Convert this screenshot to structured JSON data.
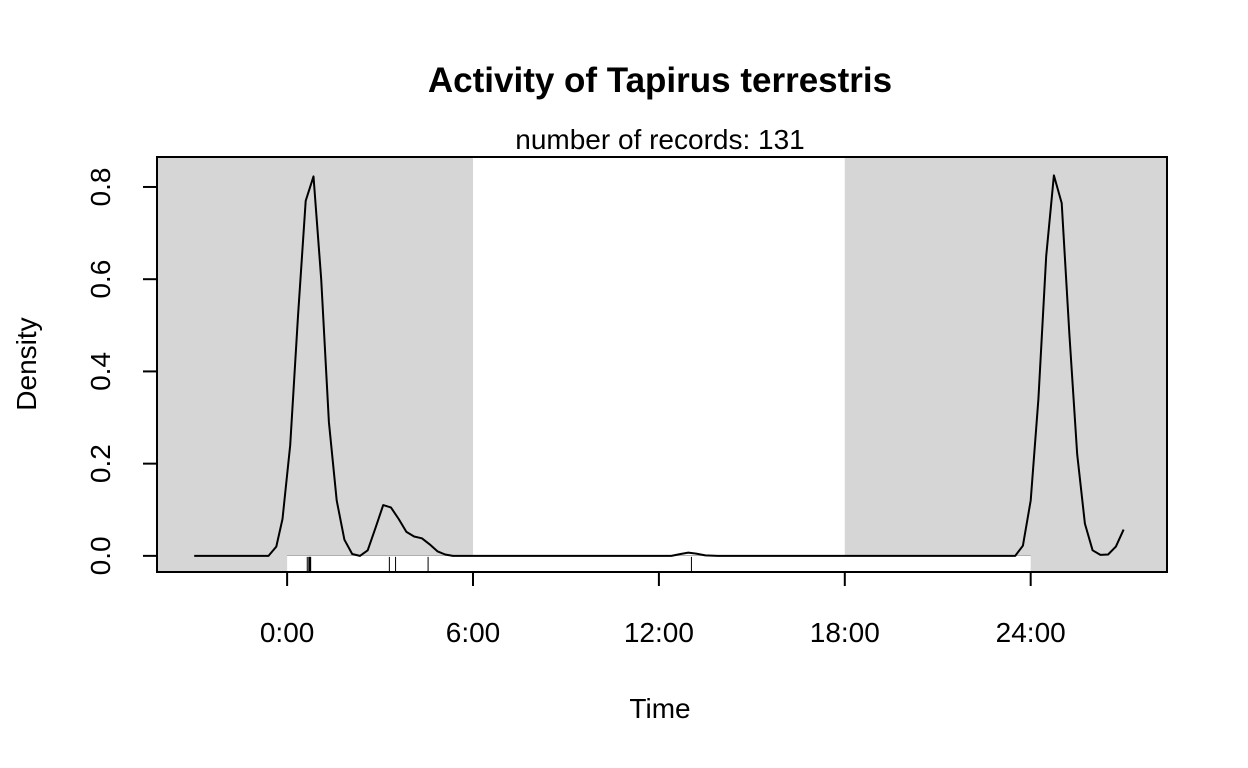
{
  "chart_data": {
    "type": "line",
    "title": "Activity of Tapirus terrestris",
    "subtitle": "number of records: 131",
    "xlabel": "Time",
    "ylabel": "Density",
    "xlim": [
      -4.2,
      28.4
    ],
    "ylim": [
      -0.035,
      0.865
    ],
    "x_unit": "hours",
    "x_ticks": [
      0,
      6,
      12,
      18,
      24
    ],
    "x_tick_labels": [
      "0:00",
      "6:00",
      "12:00",
      "18:00",
      "24:00"
    ],
    "y_ticks": [
      0.0,
      0.2,
      0.4,
      0.6,
      0.8
    ],
    "y_tick_labels": [
      "0.0",
      "0.2",
      "0.4",
      "0.6",
      "0.8"
    ],
    "grid": false,
    "night_shading": {
      "color": "#d6d6d6",
      "intervals": [
        [
          -4.2,
          6.0
        ],
        [
          18.0,
          28.4
        ]
      ]
    },
    "series": [
      {
        "color": "#000000",
        "x": [
          -3.0,
          -0.6,
          -0.35,
          -0.15,
          0.1,
          0.35,
          0.6,
          0.85,
          1.1,
          1.35,
          1.6,
          1.85,
          2.1,
          2.35,
          2.6,
          2.85,
          3.1,
          3.35,
          3.6,
          3.85,
          4.1,
          4.35,
          4.6,
          4.85,
          5.1,
          5.35,
          5.6,
          6.0,
          12.4,
          12.7,
          12.95,
          13.2,
          13.5,
          13.9,
          23.5,
          23.75,
          24.0,
          24.25,
          24.5,
          24.75,
          25.0,
          25.25,
          25.5,
          25.75,
          26.0,
          26.25,
          26.5,
          26.75,
          27.0
        ],
        "y": [
          0.0,
          0.0,
          0.02,
          0.08,
          0.24,
          0.52,
          0.77,
          0.823,
          0.6,
          0.29,
          0.12,
          0.035,
          0.004,
          0.0,
          0.012,
          0.06,
          0.11,
          0.105,
          0.08,
          0.052,
          0.042,
          0.038,
          0.025,
          0.01,
          0.003,
          0.0,
          0.0,
          0.0,
          0.0,
          0.004,
          0.007,
          0.005,
          0.001,
          0.0,
          0.0,
          0.022,
          0.12,
          0.34,
          0.65,
          0.825,
          0.765,
          0.48,
          0.22,
          0.07,
          0.012,
          0.002,
          0.003,
          0.02,
          0.057
        ]
      }
    ],
    "rug": {
      "color": "#000000",
      "range": [
        0,
        24
      ],
      "x": [
        0.65,
        0.7,
        0.72,
        0.74,
        0.76,
        3.3,
        3.5,
        4.55,
        13.05
      ]
    }
  }
}
